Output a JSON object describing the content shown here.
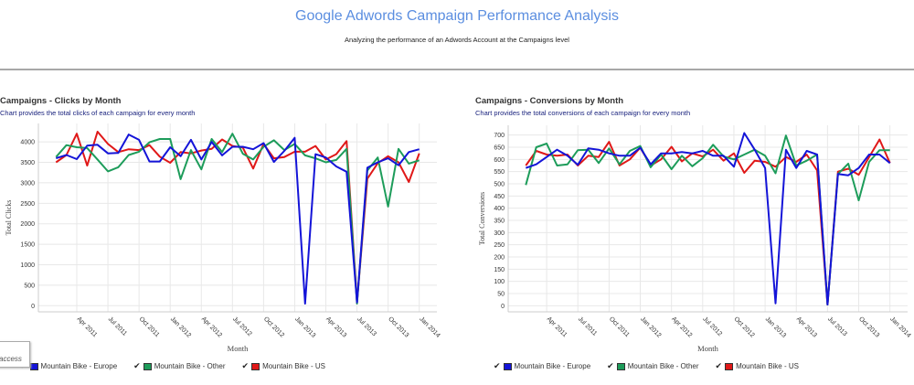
{
  "header": {
    "title": "Google Adwords Campaign Performance Analysis",
    "subtitle": "Analyzing the performance of an Adwords Account at the Campaigns level"
  },
  "tooltip": {
    "text": "access"
  },
  "chart_data": [
    {
      "type": "line",
      "title": "Campaigns - Clicks by Month",
      "subtitle": "Chart provides the total clicks of each campaign for every month",
      "xlabel": "Month",
      "ylabel": "Total Clicks",
      "x_start": "Feb 2011",
      "x_end": "Jan 2014",
      "xticks": [
        "Apr 2011",
        "Jul 2011",
        "Oct 2011",
        "Jan 2012",
        "Apr 2012",
        "Jul 2012",
        "Oct 2012",
        "Jan 2013",
        "Apr 2013",
        "Jul 2013",
        "Oct 2013",
        "Jan 2014"
      ],
      "yticks": [
        0,
        500,
        1000,
        1500,
        2000,
        2500,
        3000,
        3500,
        4000
      ],
      "ylim": [
        -150,
        4450
      ],
      "grid": true,
      "legend": "bottom",
      "series": [
        {
          "name": "Mountain Bike - Europe",
          "color": "#1414d8",
          "values": [
            3600,
            3680,
            3580,
            3910,
            3930,
            3720,
            3730,
            4180,
            4050,
            3520,
            3520,
            3870,
            3650,
            4050,
            3570,
            4000,
            3670,
            3880,
            3880,
            3820,
            3970,
            3510,
            3780,
            4100,
            50,
            3700,
            3620,
            3400,
            3270,
            80,
            3370,
            3500,
            3600,
            3430,
            3750,
            3820
          ]
        },
        {
          "name": "Mountain Bike - Other",
          "color": "#1d9c5a",
          "values": [
            3630,
            3920,
            3870,
            3850,
            3570,
            3280,
            3380,
            3680,
            3760,
            3990,
            4070,
            4070,
            3090,
            3800,
            3330,
            4070,
            3750,
            4200,
            3710,
            3570,
            3880,
            4040,
            3800,
            3950,
            3670,
            3600,
            3500,
            3560,
            3830,
            50,
            3300,
            3620,
            2420,
            3830,
            3470,
            3550
          ]
        },
        {
          "name": "Mountain Bike - US",
          "color": "#e01818",
          "values": [
            3500,
            3680,
            4200,
            3420,
            4250,
            3950,
            3750,
            3820,
            3800,
            3920,
            3640,
            3490,
            3750,
            3720,
            3790,
            3830,
            4060,
            3900,
            3860,
            3350,
            3950,
            3600,
            3630,
            3760,
            3760,
            3900,
            3570,
            3700,
            4020,
            80,
            3100,
            3480,
            3650,
            3500,
            3020,
            3720
          ]
        }
      ]
    },
    {
      "type": "line",
      "title": "Campaigns - Conversions by Month",
      "subtitle": "Chart provides the total conversions of each campaign for every month",
      "xlabel": "Month",
      "ylabel": "Total Conversions",
      "x_start": "Feb 2011",
      "x_end": "Jan 2014",
      "xticks": [
        "Apr 2011",
        "Jul 2011",
        "Oct 2011",
        "Jan 2012",
        "Apr 2012",
        "Jul 2012",
        "Oct 2012",
        "Jan 2013",
        "Apr 2013",
        "Jul 2013",
        "Oct 2013",
        "Jan 2014"
      ],
      "yticks": [
        0,
        50,
        100,
        150,
        200,
        250,
        300,
        350,
        400,
        450,
        500,
        550,
        600,
        650,
        700
      ],
      "ylim": [
        -25,
        740
      ],
      "grid": true,
      "legend": "bottom",
      "series": [
        {
          "name": "Mountain Bike - Europe",
          "color": "#1414d8",
          "values": [
            565,
            580,
            610,
            640,
            615,
            578,
            645,
            640,
            625,
            615,
            615,
            648,
            580,
            625,
            625,
            630,
            625,
            635,
            615,
            615,
            570,
            708,
            640,
            565,
            10,
            640,
            565,
            635,
            620,
            5,
            540,
            535,
            565,
            620,
            620,
            585
          ]
        },
        {
          "name": "Mountain Bike - Other",
          "color": "#1d9c5a",
          "values": [
            495,
            650,
            665,
            575,
            580,
            638,
            640,
            585,
            645,
            580,
            635,
            655,
            568,
            620,
            560,
            615,
            572,
            605,
            660,
            612,
            600,
            620,
            640,
            615,
            543,
            698,
            575,
            595,
            620,
            5,
            540,
            583,
            432,
            590,
            638,
            638
          ]
        },
        {
          "name": "Mountain Bike - US",
          "color": "#e01818",
          "values": [
            575,
            635,
            620,
            615,
            620,
            575,
            615,
            610,
            672,
            575,
            600,
            648,
            575,
            600,
            652,
            592,
            625,
            612,
            640,
            595,
            625,
            545,
            595,
            590,
            570,
            610,
            590,
            620,
            555,
            5,
            550,
            562,
            537,
            610,
            682,
            585
          ]
        }
      ]
    }
  ]
}
